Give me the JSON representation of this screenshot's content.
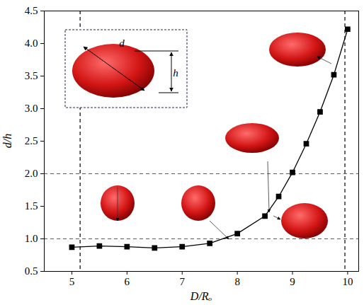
{
  "chart_data": {
    "type": "line",
    "xlabel": "D/Rₒ",
    "ylabel": "d/h",
    "x": [
      5,
      5.5,
      6,
      6.5,
      7,
      7.5,
      8,
      8.5,
      8.75,
      9,
      9.25,
      9.5,
      9.75,
      10
    ],
    "series": [
      {
        "name": "d/h",
        "color": "#000000",
        "marker": "square",
        "line_style": "solid",
        "values": [
          0.87,
          0.89,
          0.88,
          0.86,
          0.88,
          0.93,
          1.08,
          1.35,
          1.65,
          2.02,
          2.46,
          2.95,
          3.52,
          4.22
        ]
      }
    ],
    "xlim": [
      4.5,
      10.2
    ],
    "xticks": [
      5,
      6,
      7,
      8,
      9,
      10
    ],
    "ylim": [
      0.5,
      4.5
    ],
    "yticks": [
      0.5,
      {
        "value": 1,
        "label": "1.0"
      },
      1.5,
      {
        "value": 2,
        "label": "2.0"
      },
      2.5,
      {
        "value": 3,
        "label": "3.0"
      },
      3.5,
      {
        "value": 4,
        "label": "4.0"
      },
      4.5
    ],
    "reference_lines": [
      {
        "axis": "x",
        "value": 5.15,
        "color": "#000000",
        "line_style": "dashed"
      },
      {
        "axis": "x",
        "value": 9.95,
        "color": "#000000",
        "line_style": "dashed"
      },
      {
        "axis": "y",
        "value": 1,
        "color": "#8a2be2",
        "line_style": "dashed"
      },
      {
        "axis": "y",
        "value": 2,
        "color": "#8a2be2",
        "line_style": "dashed"
      }
    ],
    "annotations": [
      {
        "text": "d"
      },
      {
        "text": "h"
      }
    ]
  }
}
